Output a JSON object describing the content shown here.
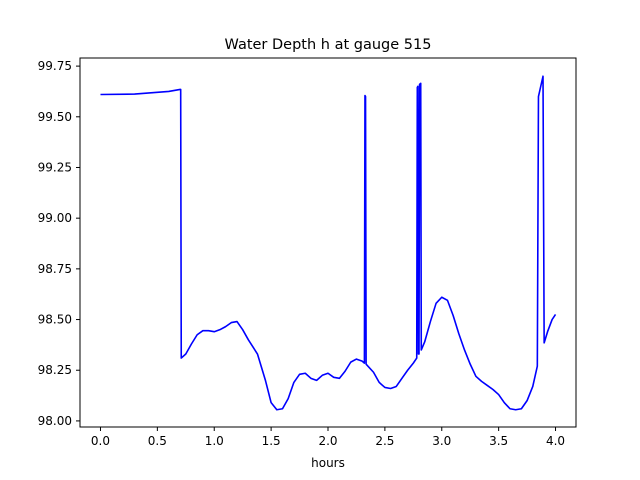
{
  "chart_data": {
    "type": "line",
    "title": "Water Depth h at gauge 515",
    "xlabel": "hours",
    "ylabel": "",
    "xlim": [
      -0.18,
      4.18
    ],
    "ylim": [
      97.97,
      99.79
    ],
    "grid": false,
    "line_color": "#0000ff",
    "xticks": [
      0.0,
      0.5,
      1.0,
      1.5,
      2.0,
      2.5,
      3.0,
      3.5,
      4.0
    ],
    "xtick_labels": [
      "0.0",
      "0.5",
      "1.0",
      "1.5",
      "2.0",
      "2.5",
      "3.0",
      "3.5",
      "4.0"
    ],
    "yticks": [
      98.0,
      98.25,
      98.5,
      98.75,
      99.0,
      99.25,
      99.5,
      99.75
    ],
    "ytick_labels": [
      "98.00",
      "98.25",
      "98.50",
      "98.75",
      "99.00",
      "99.25",
      "99.50",
      "99.75"
    ],
    "series": [
      {
        "name": "",
        "points": [
          [
            0.0,
            99.61
          ],
          [
            0.3,
            99.612
          ],
          [
            0.6,
            99.625
          ],
          [
            0.7,
            99.635
          ],
          [
            0.705,
            99.635
          ],
          [
            0.71,
            98.31
          ],
          [
            0.75,
            98.33
          ],
          [
            0.8,
            98.38
          ],
          [
            0.85,
            98.425
          ],
          [
            0.9,
            98.445
          ],
          [
            0.95,
            98.445
          ],
          [
            1.0,
            98.44
          ],
          [
            1.05,
            98.45
          ],
          [
            1.1,
            98.465
          ],
          [
            1.15,
            98.485
          ],
          [
            1.2,
            98.49
          ],
          [
            1.25,
            98.45
          ],
          [
            1.3,
            98.4
          ],
          [
            1.38,
            98.33
          ],
          [
            1.45,
            98.2
          ],
          [
            1.5,
            98.09
          ],
          [
            1.55,
            98.055
          ],
          [
            1.6,
            98.06
          ],
          [
            1.65,
            98.11
          ],
          [
            1.7,
            98.19
          ],
          [
            1.75,
            98.23
          ],
          [
            1.8,
            98.235
          ],
          [
            1.85,
            98.21
          ],
          [
            1.9,
            98.2
          ],
          [
            1.95,
            98.225
          ],
          [
            2.0,
            98.235
          ],
          [
            2.05,
            98.215
          ],
          [
            2.1,
            98.21
          ],
          [
            2.15,
            98.245
          ],
          [
            2.2,
            98.29
          ],
          [
            2.25,
            98.305
          ],
          [
            2.3,
            98.295
          ],
          [
            2.32,
            98.285
          ],
          [
            2.325,
            99.605
          ],
          [
            2.33,
            99.6
          ],
          [
            2.335,
            98.28
          ],
          [
            2.4,
            98.24
          ],
          [
            2.45,
            98.19
          ],
          [
            2.5,
            98.165
          ],
          [
            2.55,
            98.16
          ],
          [
            2.6,
            98.17
          ],
          [
            2.65,
            98.21
          ],
          [
            2.7,
            98.25
          ],
          [
            2.75,
            98.285
          ],
          [
            2.78,
            98.31
          ],
          [
            2.785,
            99.645
          ],
          [
            2.79,
            99.65
          ],
          [
            2.795,
            98.33
          ],
          [
            2.8,
            98.33
          ],
          [
            2.805,
            99.66
          ],
          [
            2.815,
            99.665
          ],
          [
            2.82,
            98.35
          ],
          [
            2.85,
            98.39
          ],
          [
            2.9,
            98.49
          ],
          [
            2.95,
            98.58
          ],
          [
            3.0,
            98.61
          ],
          [
            3.05,
            98.595
          ],
          [
            3.1,
            98.52
          ],
          [
            3.15,
            98.43
          ],
          [
            3.2,
            98.35
          ],
          [
            3.25,
            98.28
          ],
          [
            3.3,
            98.22
          ],
          [
            3.35,
            98.195
          ],
          [
            3.4,
            98.175
          ],
          [
            3.45,
            98.155
          ],
          [
            3.5,
            98.13
          ],
          [
            3.55,
            98.09
          ],
          [
            3.6,
            98.06
          ],
          [
            3.65,
            98.055
          ],
          [
            3.7,
            98.06
          ],
          [
            3.75,
            98.1
          ],
          [
            3.8,
            98.17
          ],
          [
            3.84,
            98.27
          ],
          [
            3.85,
            99.6
          ],
          [
            3.87,
            99.65
          ],
          [
            3.89,
            99.7
          ],
          [
            3.9,
            98.385
          ],
          [
            3.93,
            98.44
          ],
          [
            3.97,
            98.5
          ],
          [
            4.0,
            98.525
          ]
        ]
      }
    ]
  }
}
